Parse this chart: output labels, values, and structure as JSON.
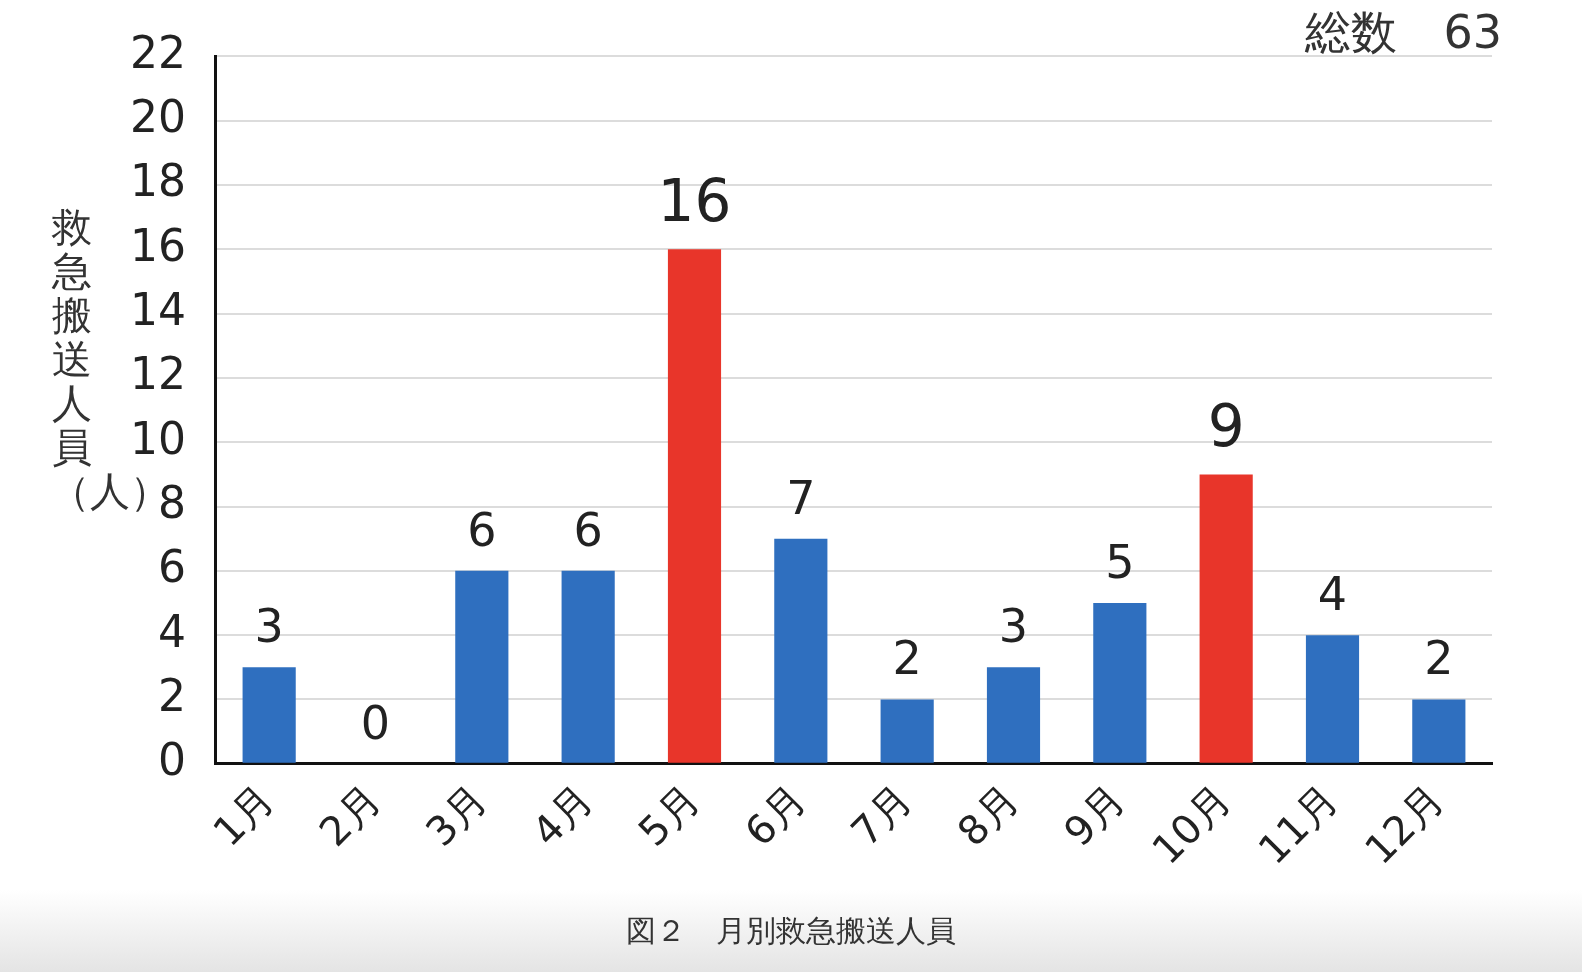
{
  "chart_data": {
    "type": "bar",
    "ylabel": "救急搬送人員（人）",
    "categories": [
      "1月",
      "2月",
      "3月",
      "4月",
      "5月",
      "6月",
      "7月",
      "8月",
      "9月",
      "10月",
      "11月",
      "12月"
    ],
    "values": [
      3,
      0,
      6,
      6,
      16,
      7,
      2,
      3,
      5,
      9,
      4,
      2
    ],
    "colors": [
      "#2f6fbf",
      "#2f6fbf",
      "#2f6fbf",
      "#2f6fbf",
      "#e8352a",
      "#2f6fbf",
      "#2f6fbf",
      "#2f6fbf",
      "#2f6fbf",
      "#e8352a",
      "#2f6fbf",
      "#2f6fbf"
    ],
    "ylim": [
      0,
      22
    ],
    "yticks": [
      0,
      2,
      4,
      6,
      8,
      10,
      12,
      14,
      16,
      18,
      20,
      22
    ],
    "grid": "y",
    "legend": false,
    "data_labels": true,
    "annotations": [
      "総数　63",
      "図２　月別救急搬送人員"
    ]
  }
}
